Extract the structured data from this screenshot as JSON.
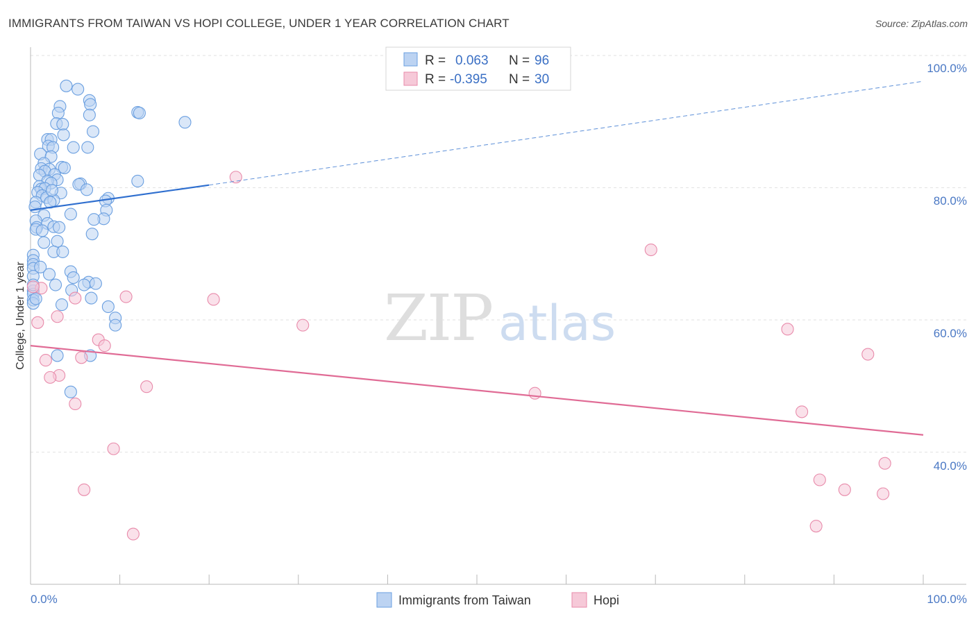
{
  "chart_data": {
    "type": "scatter",
    "title": "IMMIGRANTS FROM TAIWAN VS HOPI COLLEGE, UNDER 1 YEAR CORRELATION CHART",
    "source": "Source: ZipAtlas.com",
    "xlabel": "",
    "ylabel": "College, Under 1 year",
    "xlim": [
      0,
      100
    ],
    "ylim": [
      20,
      100
    ],
    "x_tick_labels": [
      "0.0%",
      "100.0%"
    ],
    "y_tick_labels": [
      "100.0%",
      "80.0%",
      "60.0%",
      "40.0%"
    ],
    "y_tick_values": [
      100,
      80,
      60,
      40
    ],
    "grid": true,
    "legend_position": "top-center",
    "watermark": {
      "zip": "ZIP",
      "atlas": "atlas"
    },
    "legend": [
      {
        "r_label": "R =",
        "r_value": "0.063",
        "n_label": "N =",
        "n_value": "96"
      },
      {
        "r_label": "R =",
        "r_value": "-0.395",
        "n_label": "N =",
        "n_value": "30"
      }
    ],
    "series": [
      {
        "name": "Immigrants from Taiwan",
        "color": "#6a9fe0",
        "fill": "#bcd3f2",
        "trend": {
          "x": [
            0,
            20
          ],
          "y": [
            76.6,
            80.4
          ],
          "dashed_extension_to": [
            100,
            96.1
          ]
        },
        "points": [
          [
            4.0,
            95.4
          ],
          [
            5.3,
            94.9
          ],
          [
            6.6,
            93.2
          ],
          [
            3.3,
            92.3
          ],
          [
            6.7,
            92.6
          ],
          [
            3.1,
            91.3
          ],
          [
            12.0,
            91.4
          ],
          [
            12.2,
            91.3
          ],
          [
            6.6,
            91.0
          ],
          [
            17.3,
            89.9
          ],
          [
            2.9,
            89.7
          ],
          [
            3.6,
            89.6
          ],
          [
            7.0,
            88.5
          ],
          [
            3.7,
            88.0
          ],
          [
            1.9,
            87.3
          ],
          [
            2.3,
            87.3
          ],
          [
            4.8,
            86.1
          ],
          [
            2.0,
            86.3
          ],
          [
            2.5,
            86.1
          ],
          [
            6.4,
            86.1
          ],
          [
            1.1,
            85.1
          ],
          [
            2.3,
            84.7
          ],
          [
            1.5,
            83.7
          ],
          [
            1.2,
            82.9
          ],
          [
            3.5,
            83.1
          ],
          [
            3.8,
            83.0
          ],
          [
            2.1,
            82.8
          ],
          [
            1.6,
            82.5
          ],
          [
            2.7,
            82.0
          ],
          [
            3.0,
            81.2
          ],
          [
            1.0,
            81.9
          ],
          [
            1.9,
            81.0
          ],
          [
            2.3,
            80.7
          ],
          [
            12.0,
            81.0
          ],
          [
            5.6,
            80.6
          ],
          [
            5.4,
            80.5
          ],
          [
            1.0,
            80.2
          ],
          [
            1.2,
            79.8
          ],
          [
            1.6,
            79.9
          ],
          [
            0.8,
            79.3
          ],
          [
            3.4,
            79.2
          ],
          [
            6.3,
            79.7
          ],
          [
            1.3,
            78.8
          ],
          [
            1.8,
            78.5
          ],
          [
            2.6,
            78.1
          ],
          [
            8.7,
            78.4
          ],
          [
            8.4,
            78.0
          ],
          [
            0.6,
            77.8
          ],
          [
            2.2,
            77.8
          ],
          [
            0.5,
            77.1
          ],
          [
            8.5,
            76.6
          ],
          [
            4.5,
            76.0
          ],
          [
            1.5,
            75.8
          ],
          [
            8.2,
            75.3
          ],
          [
            7.1,
            75.2
          ],
          [
            0.6,
            75.0
          ],
          [
            1.9,
            74.6
          ],
          [
            2.6,
            74.1
          ],
          [
            3.2,
            74.0
          ],
          [
            0.7,
            74.0
          ],
          [
            0.6,
            73.7
          ],
          [
            1.3,
            73.5
          ],
          [
            6.9,
            73.0
          ],
          [
            3.0,
            71.9
          ],
          [
            1.5,
            71.7
          ],
          [
            2.6,
            70.3
          ],
          [
            3.6,
            70.3
          ],
          [
            0.3,
            69.8
          ],
          [
            0.3,
            69.0
          ],
          [
            0.3,
            68.4
          ],
          [
            0.3,
            67.8
          ],
          [
            4.5,
            67.3
          ],
          [
            2.1,
            66.9
          ],
          [
            4.8,
            66.4
          ],
          [
            0.3,
            66.6
          ],
          [
            6.5,
            65.7
          ],
          [
            7.3,
            65.5
          ],
          [
            2.8,
            65.3
          ],
          [
            6.0,
            65.3
          ],
          [
            0.3,
            64.4
          ],
          [
            4.6,
            64.5
          ],
          [
            0.3,
            63.9
          ],
          [
            6.8,
            63.3
          ],
          [
            0.3,
            63.0
          ],
          [
            0.3,
            62.5
          ],
          [
            3.5,
            62.3
          ],
          [
            8.7,
            62.0
          ],
          [
            9.5,
            60.3
          ],
          [
            9.5,
            59.2
          ],
          [
            3.0,
            54.6
          ],
          [
            6.7,
            54.6
          ],
          [
            4.5,
            49.1
          ],
          [
            0.6,
            63.2
          ],
          [
            0.3,
            65.3
          ],
          [
            1.1,
            68.0
          ],
          [
            2.4,
            79.6
          ]
        ]
      },
      {
        "name": "Hopi",
        "color": "#e88aaa",
        "fill": "#f6c9d8",
        "trend": {
          "x": [
            0,
            100
          ],
          "y": [
            56.1,
            42.6
          ]
        },
        "points": [
          [
            23.0,
            81.6
          ],
          [
            69.5,
            70.6
          ],
          [
            1.2,
            64.8
          ],
          [
            10.7,
            63.5
          ],
          [
            5.0,
            63.3
          ],
          [
            20.5,
            63.1
          ],
          [
            3.0,
            60.5
          ],
          [
            0.8,
            59.6
          ],
          [
            30.5,
            59.2
          ],
          [
            84.8,
            58.6
          ],
          [
            7.6,
            57.0
          ],
          [
            8.3,
            56.1
          ],
          [
            93.8,
            54.8
          ],
          [
            1.7,
            53.9
          ],
          [
            5.7,
            54.3
          ],
          [
            3.2,
            51.6
          ],
          [
            2.2,
            51.3
          ],
          [
            13.0,
            49.9
          ],
          [
            56.5,
            48.9
          ],
          [
            5.0,
            47.3
          ],
          [
            86.4,
            46.1
          ],
          [
            9.3,
            40.5
          ],
          [
            95.7,
            38.3
          ],
          [
            88.4,
            35.8
          ],
          [
            91.2,
            34.3
          ],
          [
            95.5,
            33.7
          ],
          [
            6.0,
            34.3
          ],
          [
            88.0,
            28.8
          ],
          [
            11.5,
            27.6
          ],
          [
            0.3,
            65.0
          ]
        ]
      }
    ]
  },
  "bottom_legend": {
    "taiwan": "Immigrants from Taiwan",
    "hopi": "Hopi"
  }
}
